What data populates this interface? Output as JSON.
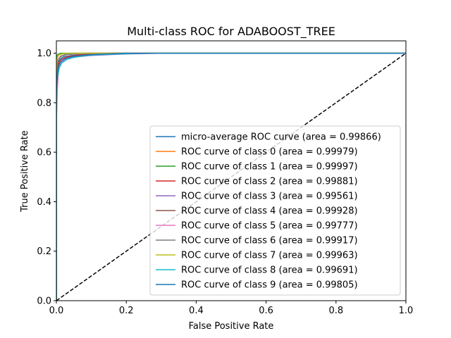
{
  "chart_data": {
    "type": "line",
    "title": "Multi-class ROC for ADABOOST_TREE",
    "xlabel": "False Positive Rate",
    "ylabel": "True Positive Rate",
    "xlim": [
      0.0,
      1.0
    ],
    "ylim": [
      0.0,
      1.05
    ],
    "xticks": [
      0.0,
      0.2,
      0.4,
      0.6,
      0.8,
      1.0
    ],
    "xtick_labels": [
      "0.0",
      "0.2",
      "0.4",
      "0.6",
      "0.8",
      "1.0"
    ],
    "yticks": [
      0.0,
      0.2,
      0.4,
      0.6,
      0.8,
      1.0
    ],
    "ytick_labels": [
      "0.0",
      "0.2",
      "0.4",
      "0.6",
      "0.8",
      "1.0"
    ],
    "grid": false,
    "legend_position": "lower-right",
    "series": [
      {
        "name": "micro-average ROC curve (area = 0.99866)",
        "color": "#1f77b4",
        "x": [
          0,
          0,
          0.002,
          0.005,
          0.01,
          0.02,
          0.04,
          0.07,
          0.1,
          0.15,
          0.2,
          0.3,
          1.0
        ],
        "y": [
          0,
          0.86,
          0.93,
          0.96,
          0.975,
          0.985,
          0.99,
          0.994,
          0.996,
          0.998,
          0.999,
          1.0,
          1.0
        ]
      },
      {
        "name": "ROC curve of class 0 (area = 0.99979)",
        "color": "#ff7f0e",
        "x": [
          0,
          0,
          0.002,
          0.005,
          0.01,
          0.02,
          0.04,
          1.0
        ],
        "y": [
          0,
          0.92,
          0.975,
          0.99,
          0.995,
          0.998,
          1.0,
          1.0
        ]
      },
      {
        "name": "ROC curve of class 1 (area = 0.99997)",
        "color": "#2ca02c",
        "x": [
          0,
          0,
          0.002,
          0.005,
          0.01,
          0.015,
          1.0
        ],
        "y": [
          0,
          0.97,
          0.99,
          0.996,
          0.999,
          1.0,
          1.0
        ]
      },
      {
        "name": "ROC curve of class 2 (area = 0.99881)",
        "color": "#d62728",
        "x": [
          0,
          0,
          0.003,
          0.008,
          0.015,
          0.03,
          0.06,
          0.1,
          0.15,
          1.0
        ],
        "y": [
          0,
          0.87,
          0.94,
          0.965,
          0.975,
          0.985,
          0.992,
          0.996,
          1.0,
          1.0
        ]
      },
      {
        "name": "ROC curve of class 3 (area = 0.99561)",
        "color": "#9467bd",
        "x": [
          0,
          0,
          0.003,
          0.008,
          0.015,
          0.025,
          0.04,
          0.07,
          0.1,
          0.15,
          0.2,
          0.3,
          1.0
        ],
        "y": [
          0,
          0.83,
          0.9,
          0.94,
          0.96,
          0.975,
          0.982,
          0.987,
          0.991,
          0.994,
          0.997,
          1.0,
          1.0
        ]
      },
      {
        "name": "ROC curve of class 4 (area = 0.99928)",
        "color": "#8c564b",
        "x": [
          0,
          0,
          0.003,
          0.006,
          0.012,
          0.025,
          0.05,
          0.08,
          1.0
        ],
        "y": [
          0,
          0.9,
          0.955,
          0.975,
          0.988,
          0.994,
          0.998,
          1.0,
          1.0
        ]
      },
      {
        "name": "ROC curve of class 5 (area = 0.99777)",
        "color": "#e377c2",
        "x": [
          0,
          0,
          0.003,
          0.006,
          0.01,
          0.02,
          0.035,
          0.06,
          0.1,
          0.15,
          0.2,
          1.0
        ],
        "y": [
          0,
          0.72,
          0.86,
          0.93,
          0.955,
          0.97,
          0.98,
          0.988,
          0.993,
          0.997,
          1.0,
          1.0
        ]
      },
      {
        "name": "ROC curve of class 6 (area = 0.99917)",
        "color": "#7f7f7f",
        "x": [
          0,
          0,
          0.003,
          0.007,
          0.015,
          0.03,
          0.06,
          0.1,
          1.0
        ],
        "y": [
          0,
          0.9,
          0.96,
          0.978,
          0.988,
          0.994,
          0.997,
          1.0,
          1.0
        ]
      },
      {
        "name": "ROC curve of class 7 (area = 0.99963)",
        "color": "#bcbd22",
        "x": [
          0,
          0,
          0.002,
          0.005,
          0.01,
          0.02,
          0.04,
          1.0
        ],
        "y": [
          0,
          0.94,
          0.98,
          0.99,
          0.995,
          0.998,
          1.0,
          1.0
        ]
      },
      {
        "name": "ROC curve of class 8 (area = 0.99691)",
        "color": "#17becf",
        "x": [
          0,
          0,
          0.003,
          0.008,
          0.015,
          0.03,
          0.05,
          0.08,
          0.12,
          0.18,
          0.25,
          1.0
        ],
        "y": [
          0,
          0.82,
          0.9,
          0.94,
          0.96,
          0.975,
          0.983,
          0.99,
          0.994,
          0.997,
          1.0,
          1.0
        ]
      },
      {
        "name": "ROC curve of class 9 (area = 0.99805)",
        "color": "#1f77b4",
        "x": [
          0,
          0,
          0.003,
          0.007,
          0.012,
          0.025,
          0.045,
          0.08,
          0.12,
          0.2,
          1.0
        ],
        "y": [
          0,
          0.85,
          0.92,
          0.95,
          0.965,
          0.978,
          0.986,
          0.992,
          0.996,
          1.0,
          1.0
        ]
      }
    ],
    "reference_line": {
      "x": [
        0,
        1
      ],
      "y": [
        0,
        1
      ],
      "color": "#000000",
      "style": "dashed"
    }
  }
}
